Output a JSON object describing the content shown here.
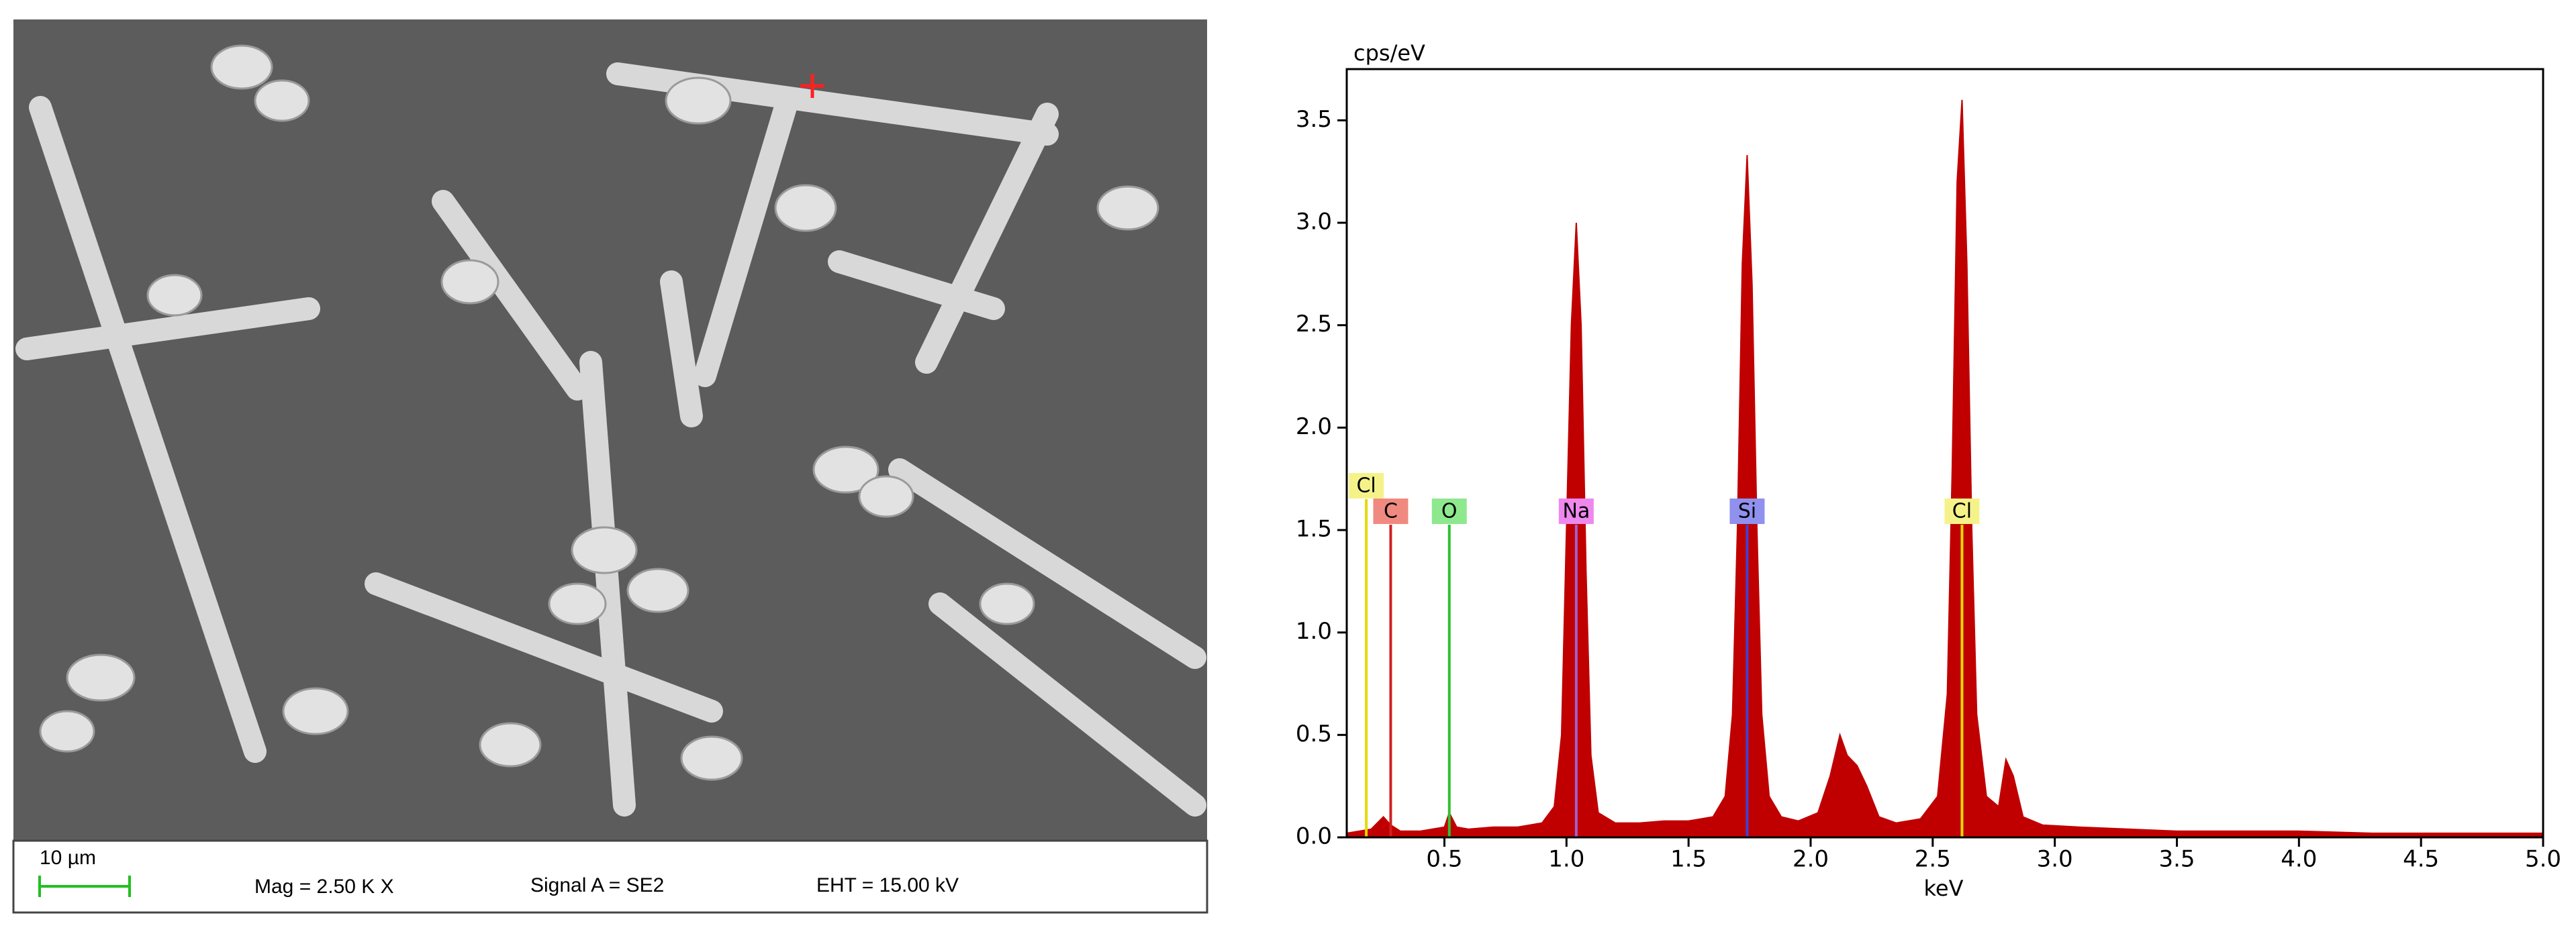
{
  "sem_info": {
    "scale_bar": "10 µm",
    "mag": "Mag =  2.50 K X",
    "signal": "Signal A = SE2",
    "eht": "EHT = 15.00 kV"
  },
  "chart_data": {
    "type": "area",
    "y_label": "cps/eV",
    "x_label": "keV",
    "color": "#c00000",
    "xlim": [
      0.1,
      5.0
    ],
    "ylim": [
      0,
      3.75
    ],
    "xticks": [
      0.5,
      {
        "value": 1.0,
        "label": "1.0"
      },
      1.5,
      {
        "value": 2.0,
        "label": "2.0"
      },
      2.5,
      {
        "value": 3.0,
        "label": "3.0"
      },
      3.5,
      {
        "value": 4.0,
        "label": "4.0"
      },
      4.5,
      {
        "value": 5.0,
        "label": "5.0"
      }
    ],
    "yticks": [
      {
        "value": 0,
        "label": "0.0"
      },
      0.5,
      {
        "value": 1.0,
        "label": "1.0"
      },
      1.5,
      {
        "value": 2.0,
        "label": "2.0"
      },
      2.5,
      {
        "value": 3.0,
        "label": "3.0"
      },
      3.5
    ],
    "x": [
      0.1,
      0.15,
      0.2,
      0.25,
      0.28,
      0.32,
      0.4,
      0.5,
      0.52,
      0.55,
      0.6,
      0.7,
      0.8,
      0.9,
      0.95,
      0.98,
      1.0,
      1.02,
      1.04,
      1.06,
      1.08,
      1.1,
      1.13,
      1.2,
      1.3,
      1.4,
      1.5,
      1.6,
      1.65,
      1.68,
      1.7,
      1.72,
      1.74,
      1.76,
      1.78,
      1.8,
      1.83,
      1.88,
      1.95,
      2.03,
      2.08,
      2.12,
      2.15,
      2.19,
      2.23,
      2.28,
      2.35,
      2.45,
      2.52,
      2.56,
      2.58,
      2.6,
      2.62,
      2.64,
      2.66,
      2.68,
      2.72,
      2.77,
      2.8,
      2.83,
      2.87,
      2.95,
      3.1,
      3.3,
      3.5,
      3.7,
      4.0,
      4.3,
      4.6,
      5.0
    ],
    "values": [
      0.02,
      0.03,
      0.04,
      0.1,
      0.06,
      0.03,
      0.03,
      0.05,
      0.12,
      0.05,
      0.04,
      0.05,
      0.05,
      0.07,
      0.15,
      0.5,
      1.5,
      2.5,
      3.0,
      2.5,
      1.3,
      0.4,
      0.12,
      0.07,
      0.07,
      0.08,
      0.08,
      0.1,
      0.2,
      0.6,
      1.5,
      2.8,
      3.33,
      2.7,
      1.5,
      0.6,
      0.2,
      0.1,
      0.08,
      0.12,
      0.3,
      0.5,
      0.4,
      0.35,
      0.25,
      0.1,
      0.07,
      0.09,
      0.2,
      0.7,
      1.8,
      3.2,
      3.6,
      2.8,
      1.5,
      0.6,
      0.2,
      0.15,
      0.38,
      0.3,
      0.1,
      0.06,
      0.05,
      0.04,
      0.03,
      0.03,
      0.03,
      0.02,
      0.02,
      0.02
    ],
    "markers": [
      {
        "label": "Cl",
        "x": 0.18,
        "color": "#e6d800",
        "fill": "#f5f28a"
      },
      {
        "label": "C",
        "x": 0.28,
        "color": "#d02020",
        "fill": "#f08a80"
      },
      {
        "label": "O",
        "x": 0.52,
        "color": "#30c030",
        "fill": "#8ee88e"
      },
      {
        "label": "Na",
        "x": 1.04,
        "color": "#a060d0",
        "fill": "#ee88ee"
      },
      {
        "label": "Si",
        "x": 1.74,
        "color": "#4040d0",
        "fill": "#9090ee"
      },
      {
        "label": "Cl",
        "x": 2.62,
        "color": "#e6d800",
        "fill": "#f5f28a"
      }
    ]
  }
}
